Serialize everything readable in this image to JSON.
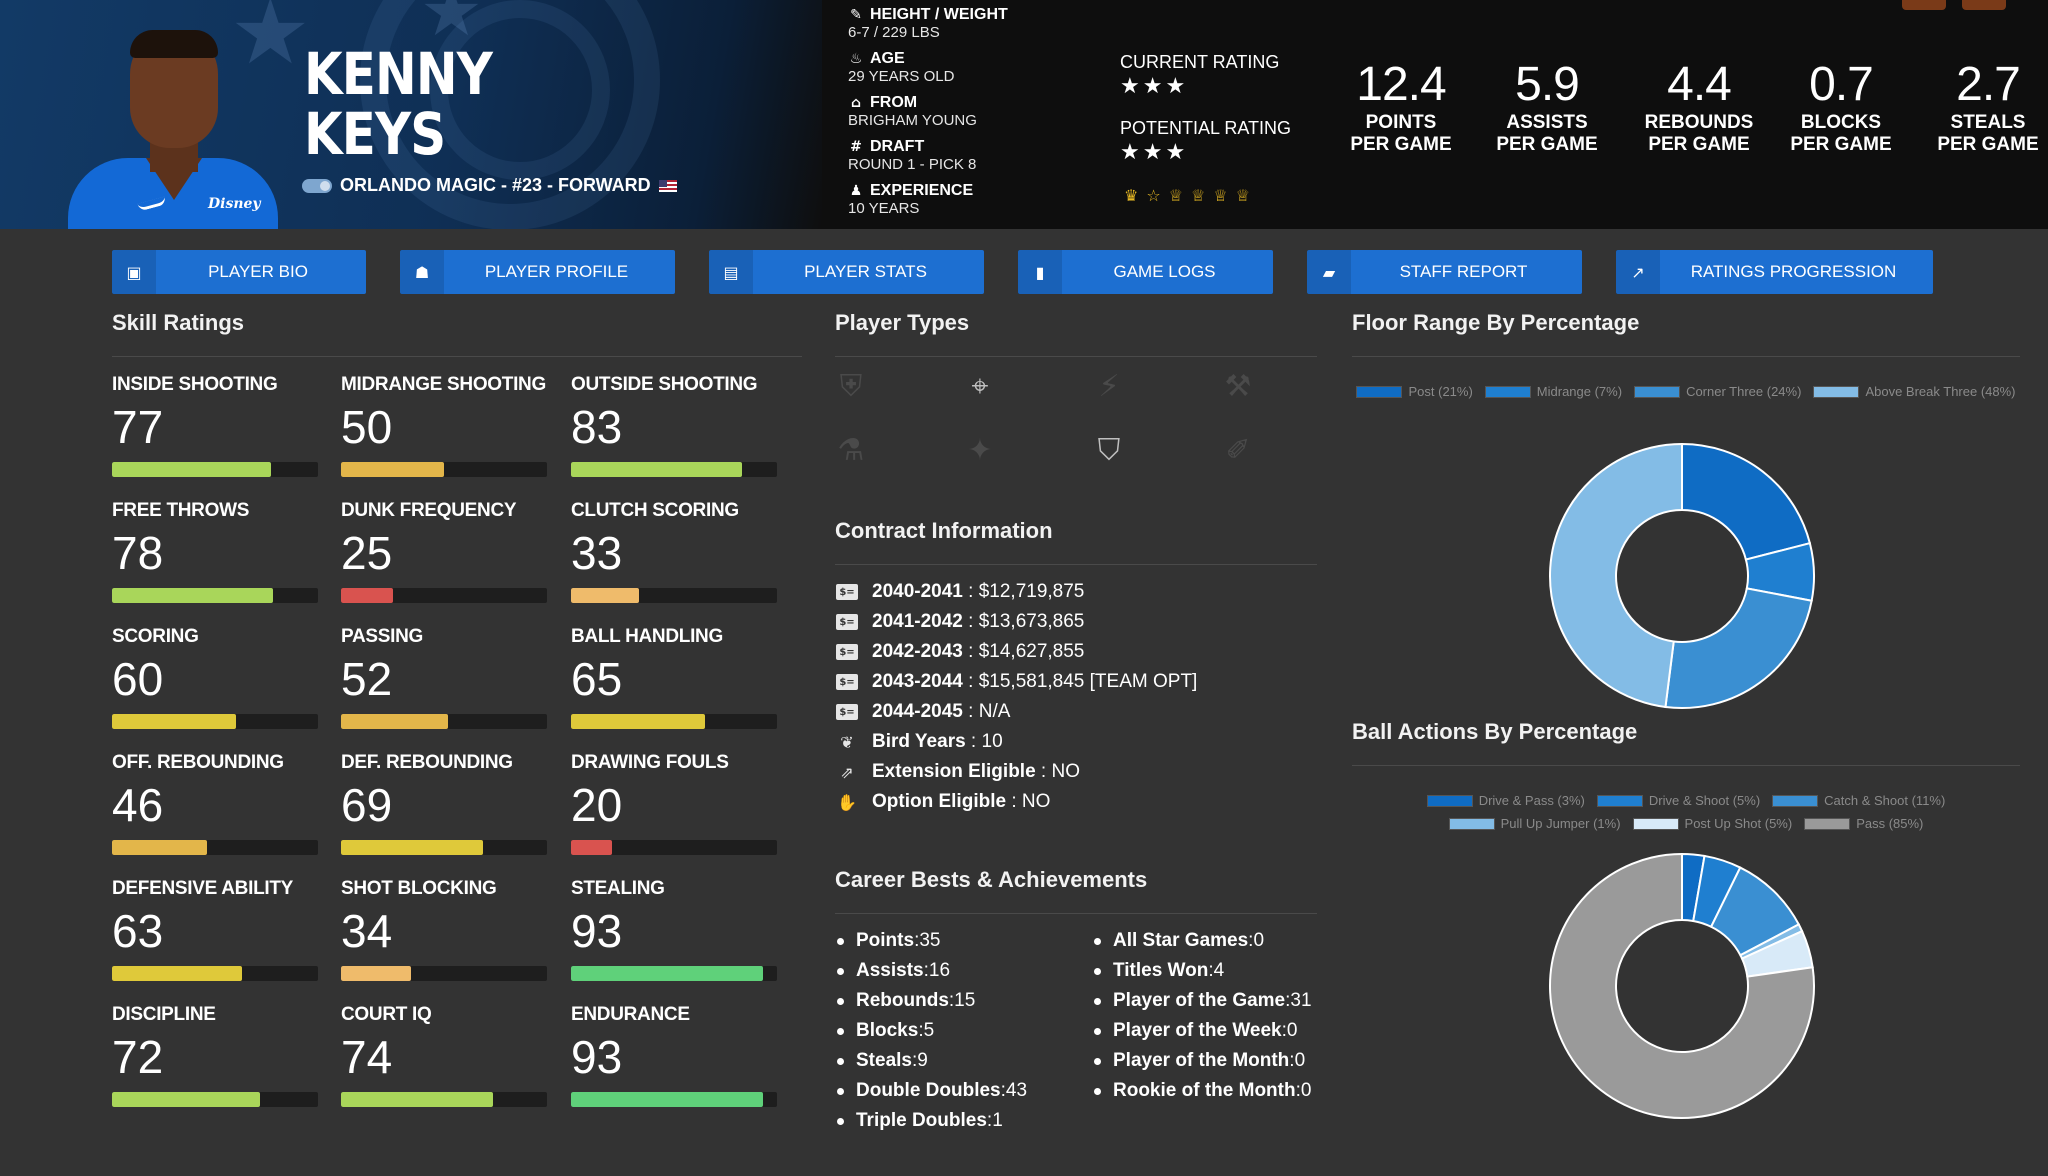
{
  "player": {
    "first_name": "KENNY",
    "last_name": "KEYS",
    "team_line": "ORLANDO MAGIC - #23 - FORWARD",
    "sponsor_text": "Disney"
  },
  "info": [
    {
      "icon": "ruler-icon",
      "glyph": "✎",
      "label": "HEIGHT / WEIGHT",
      "value": "6-7 / 229 LBS"
    },
    {
      "icon": "cake-icon",
      "glyph": "♨",
      "label": "AGE",
      "value": "29 YEARS OLD"
    },
    {
      "icon": "school-icon",
      "glyph": "⌂",
      "label": "FROM",
      "value": "BRIGHAM YOUNG"
    },
    {
      "icon": "hashtag-icon",
      "glyph": "#",
      "label": "DRAFT",
      "value": "ROUND 1 - PICK 8"
    },
    {
      "icon": "users-icon",
      "glyph": "♟",
      "label": "EXPERIENCE",
      "value": "10 YEARS"
    }
  ],
  "ratings": {
    "current_label": "CURRENT RATING",
    "current_stars": "★★★",
    "potential_label": "POTENTIAL RATING",
    "potential_stars": "★★★",
    "trophies": "♛☆♕♕♕♕"
  },
  "stats": [
    {
      "value": "12.4",
      "line1": "POINTS",
      "line2": "PER GAME"
    },
    {
      "value": "5.9",
      "line1": "ASSISTS",
      "line2": "PER GAME"
    },
    {
      "value": "4.4",
      "line1": "REBOUNDS",
      "line2": "PER GAME"
    },
    {
      "value": "0.7",
      "line1": "BLOCKS",
      "line2": "PER GAME"
    },
    {
      "value": "2.7",
      "line1": "STEALS",
      "line2": "PER GAME"
    }
  ],
  "nav": [
    {
      "label": "PLAYER BIO",
      "glyph": "▣"
    },
    {
      "label": "PLAYER PROFILE",
      "glyph": "☗"
    },
    {
      "label": "PLAYER STATS",
      "glyph": "▤"
    },
    {
      "label": "GAME LOGS",
      "glyph": "▮"
    },
    {
      "label": "STAFF REPORT",
      "glyph": "▰"
    },
    {
      "label": "RATINGS PROGRESSION",
      "glyph": "↗"
    }
  ],
  "sections": {
    "skills": "Skill Ratings",
    "player_types": "Player Types",
    "contract": "Contract Information",
    "career": "Career Bests & Achievements",
    "floor": "Floor Range By Percentage",
    "ball": "Ball Actions By Percentage"
  },
  "skills": [
    {
      "name": "INSIDE SHOOTING",
      "value": "77",
      "level": 77,
      "color": "#a9d65a"
    },
    {
      "name": "MIDRANGE SHOOTING",
      "value": "50",
      "level": 50,
      "color": "#e3b64a"
    },
    {
      "name": "OUTSIDE SHOOTING",
      "value": "83",
      "level": 83,
      "color": "#a9d65a"
    },
    {
      "name": "FREE THROWS",
      "value": "78",
      "level": 78,
      "color": "#a9d65a"
    },
    {
      "name": "DUNK FREQUENCY",
      "value": "25",
      "level": 25,
      "color": "#d9534f"
    },
    {
      "name": "CLUTCH SCORING",
      "value": "33",
      "level": 33,
      "color": "#efbb6b"
    },
    {
      "name": "SCORING",
      "value": "60",
      "level": 60,
      "color": "#dfc93a"
    },
    {
      "name": "PASSING",
      "value": "52",
      "level": 52,
      "color": "#e3b64a"
    },
    {
      "name": "BALL HANDLING",
      "value": "65",
      "level": 65,
      "color": "#dfc93a"
    },
    {
      "name": "OFF. REBOUNDING",
      "value": "46",
      "level": 46,
      "color": "#e3b64a"
    },
    {
      "name": "DEF. REBOUNDING",
      "value": "69",
      "level": 69,
      "color": "#dfc93a"
    },
    {
      "name": "DRAWING FOULS",
      "value": "20",
      "level": 20,
      "color": "#d9534f"
    },
    {
      "name": "DEFENSIVE ABILITY",
      "value": "63",
      "level": 63,
      "color": "#dfc93a"
    },
    {
      "name": "SHOT BLOCKING",
      "value": "34",
      "level": 34,
      "color": "#efbb6b"
    },
    {
      "name": "STEALING",
      "value": "93",
      "level": 93,
      "color": "#5fd17a"
    },
    {
      "name": "DISCIPLINE",
      "value": "72",
      "level": 72,
      "color": "#a9d65a"
    },
    {
      "name": "COURT IQ",
      "value": "74",
      "level": 74,
      "color": "#a9d65a"
    },
    {
      "name": "ENDURANCE",
      "value": "93",
      "level": 93,
      "color": "#5fd17a"
    }
  ],
  "player_types": [
    {
      "icon": "shield-strike-icon",
      "glyph": "⛨",
      "active": false
    },
    {
      "icon": "crosshair-icon",
      "glyph": "⌖",
      "active": true
    },
    {
      "icon": "lightning-icon",
      "glyph": "⚡",
      "active": false
    },
    {
      "icon": "hammer-icon",
      "glyph": "⚒",
      "active": false
    },
    {
      "icon": "flask-icon",
      "glyph": "⚗",
      "active": false
    },
    {
      "icon": "magic-wand-icon",
      "glyph": "✦",
      "active": false
    },
    {
      "icon": "shield-icon",
      "glyph": "⛉",
      "active": true
    },
    {
      "icon": "brush-icon",
      "glyph": "✐",
      "active": false
    }
  ],
  "contract": [
    {
      "icon": "money-icon",
      "glyph": "$=",
      "key": "2040-2041",
      "value": "$12,719,875"
    },
    {
      "icon": "money-icon",
      "glyph": "$=",
      "key": "2041-2042",
      "value": "$13,673,865"
    },
    {
      "icon": "money-icon",
      "glyph": "$=",
      "key": "2042-2043",
      "value": "$14,627,855"
    },
    {
      "icon": "money-icon",
      "glyph": "$=",
      "key": "2043-2044",
      "value": "$15,581,845 [TEAM OPT]"
    },
    {
      "icon": "money-icon",
      "glyph": "$=",
      "key": "2044-2045",
      "value": "N/A"
    },
    {
      "icon": "feather-icon",
      "glyph": "❦",
      "key": "Bird Years",
      "value": "10"
    },
    {
      "icon": "external-link-icon",
      "glyph": "⇗",
      "key": "Extension Eligible",
      "value": "NO"
    },
    {
      "icon": "thumbs-up-icon",
      "glyph": "✋",
      "key": "Option Eligible",
      "value": "NO"
    }
  ],
  "career_left": [
    {
      "key": "Points",
      "value": "35"
    },
    {
      "key": "Assists",
      "value": "16"
    },
    {
      "key": "Rebounds",
      "value": "15"
    },
    {
      "key": "Blocks",
      "value": "5"
    },
    {
      "key": "Steals",
      "value": "9"
    },
    {
      "key": "Double Doubles",
      "value": "43"
    },
    {
      "key": "Triple Doubles",
      "value": "1"
    }
  ],
  "career_right": [
    {
      "key": "All Star Games",
      "value": "0"
    },
    {
      "key": "Titles Won",
      "value": "4"
    },
    {
      "key": "Player of the Game",
      "value": "31"
    },
    {
      "key": "Player of the Week",
      "value": "0"
    },
    {
      "key": "Player of the Month",
      "value": "0"
    },
    {
      "key": "Rookie of the Month",
      "value": "0"
    }
  ],
  "chart_data": [
    {
      "type": "pie",
      "title": "Floor Range By Percentage",
      "categories": [
        "Post (21%)",
        "Midrange (7%)",
        "Corner Three (24%)",
        "Above Break Three (48%)"
      ],
      "values": [
        21,
        7,
        24,
        48
      ],
      "colors": [
        "#0f6cc4",
        "#1f7fd0",
        "#3a8fd2",
        "#83bce6"
      ],
      "legend": "top"
    },
    {
      "type": "pie",
      "title": "Ball Actions By Percentage",
      "categories": [
        "Drive & Pass (3%)",
        "Drive & Shoot (5%)",
        "Catch & Shoot (11%)",
        "Pull Up Jumper (1%)",
        "Post Up Shot (5%)",
        "Pass (85%)"
      ],
      "values": [
        3,
        5,
        11,
        1,
        5,
        85
      ],
      "colors": [
        "#0f6cc4",
        "#1f7fd0",
        "#3a8fd2",
        "#83bce6",
        "#d8eaf8",
        "#9a9a9a"
      ],
      "legend": "top"
    }
  ]
}
